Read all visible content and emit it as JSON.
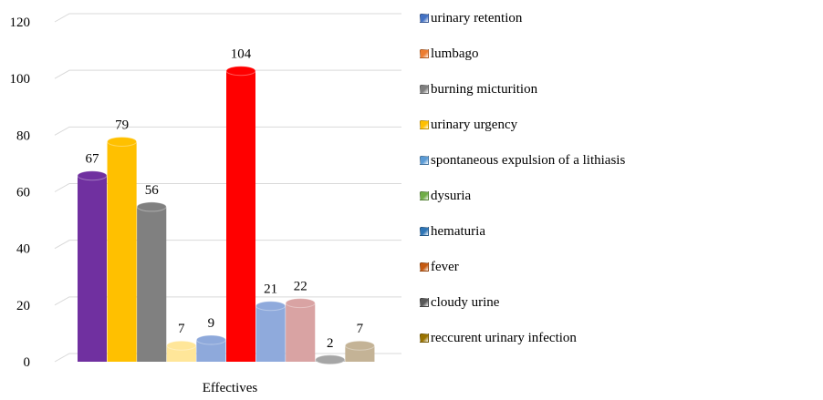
{
  "chart_data": {
    "type": "bar",
    "categories": [
      "Effectives"
    ],
    "ylim": [
      0,
      120
    ],
    "yticks": [
      0,
      20,
      40,
      60,
      80,
      100,
      120
    ],
    "grid": true,
    "legend_position": "right",
    "series": [
      {
        "name": "urinary retention",
        "values": [
          67
        ],
        "color": "#7030A0"
      },
      {
        "name": "lumbago",
        "values": [
          79
        ],
        "color": "#FFC000"
      },
      {
        "name": "burning micturition",
        "values": [
          56
        ],
        "color": "#808080"
      },
      {
        "name": "urinary urgency",
        "values": [
          7
        ],
        "color": "#FFE699"
      },
      {
        "name": "spontaneous expulsion of a lithiasis",
        "values": [
          9
        ],
        "color": "#8EA9DB"
      },
      {
        "name": "dysuria",
        "values": [
          104
        ],
        "color": "#FF0000"
      },
      {
        "name": "hematuria",
        "values": [
          21
        ],
        "color": "#8FAADC"
      },
      {
        "name": "fever",
        "values": [
          22
        ],
        "color": "#D9A3A3"
      },
      {
        "name": "cloudy urine",
        "values": [
          2
        ],
        "color": "#A6A6A6"
      },
      {
        "name": "reccurent urinary infection",
        "values": [
          7
        ],
        "color": "#C4B396"
      }
    ],
    "legend_swatch_colors": [
      "#4472C4",
      "#ED7D31",
      "#7F7F7F",
      "#FFC000",
      "#5B9BD5",
      "#70AD47",
      "#2E75B6",
      "#C55A11",
      "#595959",
      "#997300"
    ]
  }
}
